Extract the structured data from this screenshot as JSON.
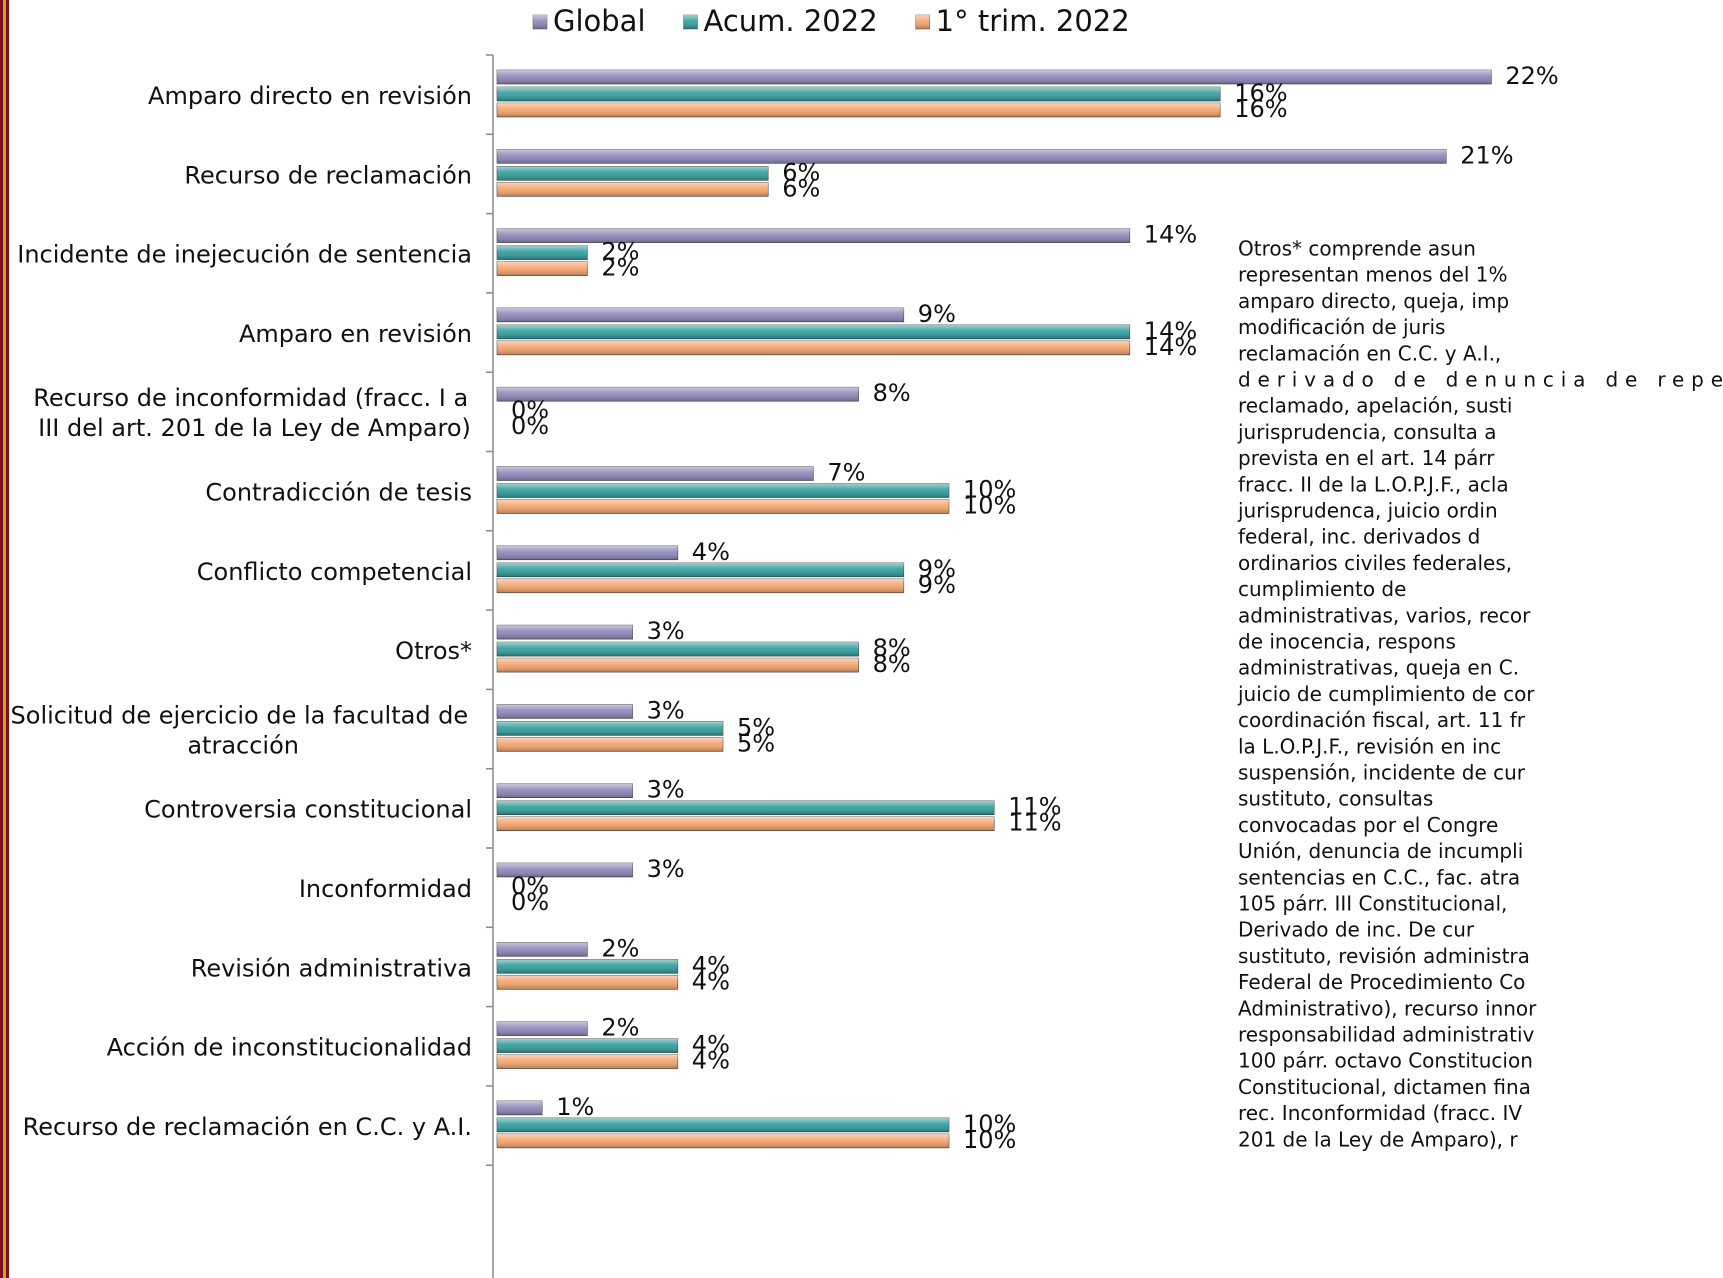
{
  "chart_data": {
    "type": "bar",
    "orientation": "horizontal",
    "categories": [
      "Amparo directo en revisión",
      "Recurso de reclamación",
      "Incidente de inejecución de sentencia",
      "Amparo en revisión",
      "Recurso de inconformidad (fracc. I a III del art. 201 de la Ley de Amparo)",
      "Contradicción de tesis",
      "Conflicto competencial",
      "Otros*",
      "Solicitud de ejercicio de la facultad de atracción",
      "Controversia constitucional",
      "Inconformidad",
      "Revisión administrativa",
      "Acción de inconstitucionalidad",
      "Recurso de reclamación en C.C. y A.I."
    ],
    "series": [
      {
        "name": "Global",
        "color": "#8b86b8",
        "values": [
          22,
          21,
          14,
          9,
          8,
          7,
          4,
          3,
          3,
          3,
          3,
          2,
          2,
          1
        ],
        "value_labels": [
          "22%",
          "21%",
          "14%",
          "9%",
          "8%",
          "7%",
          "4%",
          "3%",
          "3%",
          "3%",
          "3%",
          "2%",
          "2%",
          "1%"
        ]
      },
      {
        "name": "Acum. 2022",
        "color": "#2e9c9a",
        "values": [
          16,
          6,
          2,
          14,
          0,
          10,
          9,
          8,
          5,
          11,
          0,
          4,
          4,
          10
        ],
        "value_labels": [
          "16%",
          "6%",
          "2%",
          "14%",
          "0%",
          "10%",
          "9%",
          "8%",
          "5%",
          "11%",
          "0%",
          "4%",
          "4%",
          "10%"
        ]
      },
      {
        "name": "1° trim. 2022",
        "color": "#f4a26a",
        "values": [
          16,
          6,
          2,
          14,
          0,
          10,
          9,
          8,
          5,
          11,
          0,
          4,
          4,
          10
        ],
        "value_labels": [
          "16%",
          "6%",
          "2%",
          "14%",
          "0%",
          "10%",
          "9%",
          "8%",
          "5%",
          "11%",
          "0%",
          "4%",
          "4%",
          "10%"
        ]
      }
    ],
    "xlim": [
      0,
      27
    ],
    "legend": "top",
    "note_lines": [
      "Otros* comprende asun",
      "representan menos del 1%",
      "amparo directo, queja, imp",
      "modificación de juris",
      "reclamación en C.C. y A.I.,",
      "derivado de denuncia de repe",
      "reclamado, apelación, susti",
      "jurisprudencia, consulta a",
      "prevista en el art. 14 párr",
      "fracc. II de la L.O.P.J.F., acla",
      "jurisprudenca, juicio ordin",
      "federal, inc. derivados d",
      "ordinarios civiles federales,",
      "cumplimiento de",
      "administrativas, varios, recor",
      "de inocencia, respons",
      "administrativas, queja en C.",
      "juicio de cumplimiento de cor",
      "coordinación fiscal, art. 11 fr",
      "la L.O.P.J.F., revisión en inc",
      "suspensión, incidente de cur",
      "sustituto, consultas",
      "convocadas por el Congre",
      "Unión, denuncia de incumpli",
      "sentencias en C.C., fac. atra",
      "105 párr. III Constitucional,",
      "Derivado de inc. De cur",
      "sustituto, revisión administra",
      "Federal de Procedimiento Co",
      "Administrativo), recurso innor",
      "responsabilidad administrativ",
      "100 párr. octavo Constitucion",
      "Constitucional, dictamen fina",
      "rec. Inconformidad (fracc. IV",
      "201 de la Ley de Amparo), r"
    ]
  }
}
